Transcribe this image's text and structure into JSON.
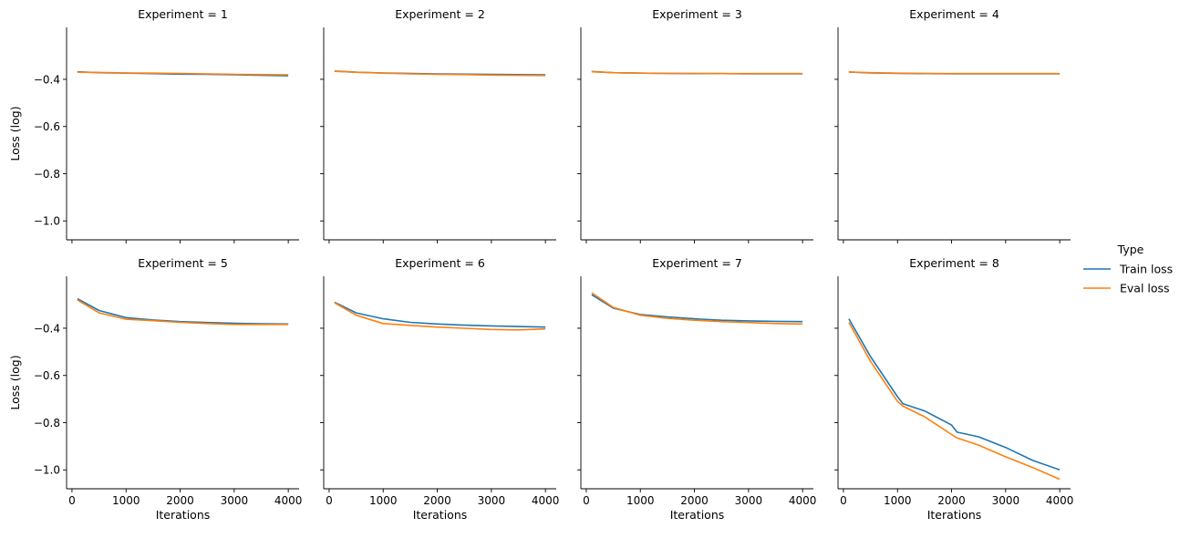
{
  "legend": {
    "title": "Type",
    "entries": [
      {
        "name": "Train loss",
        "color": "#1f77b4"
      },
      {
        "name": "Eval loss",
        "color": "#ff7f0e"
      }
    ]
  },
  "chart_data": {
    "type": "line",
    "xlabel": "Iterations",
    "ylabel": "Loss (log)",
    "xlim": [
      -100,
      4200
    ],
    "ylim": [
      -1.08,
      -0.18
    ],
    "xticks": [
      0,
      1000,
      2000,
      3000,
      4000
    ],
    "yticks": [
      -1.0,
      -0.8,
      -0.6,
      -0.4
    ],
    "ytick_labels": [
      "−1.0",
      "−0.8",
      "−0.6",
      "−0.4"
    ],
    "grid": false,
    "legend_position": "right",
    "shared_axes": true,
    "panels": [
      {
        "title": "Experiment = 1",
        "x": [
          100,
          500,
          1000,
          1500,
          2000,
          2500,
          3000,
          3500,
          4000
        ],
        "series": [
          {
            "name": "Train loss",
            "values": [
              -0.368,
              -0.372,
              -0.374,
              -0.376,
              -0.378,
              -0.379,
              -0.381,
              -0.383,
              -0.385
            ]
          },
          {
            "name": "Eval loss",
            "values": [
              -0.37,
              -0.371,
              -0.373,
              -0.374,
              -0.375,
              -0.377,
              -0.379,
              -0.38,
              -0.381
            ]
          }
        ]
      },
      {
        "title": "Experiment = 2",
        "x": [
          100,
          500,
          1000,
          1500,
          2000,
          2500,
          3000,
          3500,
          4000
        ],
        "series": [
          {
            "name": "Train loss",
            "values": [
              -0.365,
              -0.37,
              -0.373,
              -0.375,
              -0.377,
              -0.378,
              -0.379,
              -0.38,
              -0.381
            ]
          },
          {
            "name": "Eval loss",
            "values": [
              -0.366,
              -0.37,
              -0.374,
              -0.377,
              -0.379,
              -0.38,
              -0.382,
              -0.383,
              -0.384
            ]
          }
        ]
      },
      {
        "title": "Experiment = 3",
        "x": [
          100,
          500,
          1000,
          1500,
          2000,
          2500,
          3000,
          3500,
          4000
        ],
        "series": [
          {
            "name": "Train loss",
            "values": [
              -0.367,
              -0.372,
              -0.374,
              -0.375,
              -0.376,
              -0.376,
              -0.377,
              -0.377,
              -0.377
            ]
          },
          {
            "name": "Eval loss",
            "values": [
              -0.368,
              -0.372,
              -0.374,
              -0.375,
              -0.375,
              -0.376,
              -0.376,
              -0.376,
              -0.376
            ]
          }
        ]
      },
      {
        "title": "Experiment = 4",
        "x": [
          100,
          500,
          1000,
          1500,
          2000,
          2500,
          3000,
          3500,
          4000
        ],
        "series": [
          {
            "name": "Train loss",
            "values": [
              -0.369,
              -0.373,
              -0.375,
              -0.376,
              -0.377,
              -0.377,
              -0.377,
              -0.377,
              -0.377
            ]
          },
          {
            "name": "Eval loss",
            "values": [
              -0.369,
              -0.372,
              -0.374,
              -0.375,
              -0.376,
              -0.376,
              -0.376,
              -0.376,
              -0.376
            ]
          }
        ]
      },
      {
        "title": "Experiment = 5",
        "x": [
          100,
          500,
          1000,
          1500,
          2000,
          2500,
          3000,
          3500,
          4000
        ],
        "series": [
          {
            "name": "Train loss",
            "values": [
              -0.275,
              -0.325,
              -0.355,
              -0.365,
              -0.372,
              -0.376,
              -0.379,
              -0.381,
              -0.382
            ]
          },
          {
            "name": "Eval loss",
            "values": [
              -0.28,
              -0.335,
              -0.362,
              -0.368,
              -0.375,
              -0.38,
              -0.384,
              -0.384,
              -0.384
            ]
          }
        ]
      },
      {
        "title": "Experiment = 6",
        "x": [
          100,
          500,
          1000,
          1500,
          2000,
          2500,
          3000,
          3500,
          4000
        ],
        "series": [
          {
            "name": "Train loss",
            "values": [
              -0.29,
              -0.335,
              -0.36,
              -0.375,
              -0.382,
              -0.387,
              -0.39,
              -0.393,
              -0.395
            ]
          },
          {
            "name": "Eval loss",
            "values": [
              -0.292,
              -0.345,
              -0.38,
              -0.388,
              -0.395,
              -0.4,
              -0.405,
              -0.407,
              -0.403
            ]
          }
        ]
      },
      {
        "title": "Experiment = 7",
        "x": [
          100,
          500,
          1000,
          1500,
          2000,
          2500,
          3000,
          3500,
          4000
        ],
        "series": [
          {
            "name": "Train loss",
            "values": [
              -0.258,
              -0.315,
              -0.342,
              -0.352,
              -0.36,
              -0.366,
              -0.369,
              -0.371,
              -0.372
            ]
          },
          {
            "name": "Eval loss",
            "values": [
              -0.25,
              -0.312,
              -0.345,
              -0.358,
              -0.366,
              -0.372,
              -0.376,
              -0.38,
              -0.382
            ]
          }
        ]
      },
      {
        "title": "Experiment = 8",
        "x": [
          100,
          500,
          1000,
          1100,
          1500,
          2000,
          2100,
          2500,
          3000,
          3500,
          4000
        ],
        "series": [
          {
            "name": "Train loss",
            "values": [
              -0.36,
              -0.52,
              -0.69,
              -0.72,
              -0.75,
              -0.81,
              -0.84,
              -0.86,
              -0.905,
              -0.96,
              -1.0
            ]
          },
          {
            "name": "Eval loss",
            "values": [
              -0.375,
              -0.54,
              -0.71,
              -0.73,
              -0.775,
              -0.85,
              -0.865,
              -0.895,
              -0.945,
              -0.99,
              -1.04
            ]
          }
        ]
      }
    ]
  }
}
